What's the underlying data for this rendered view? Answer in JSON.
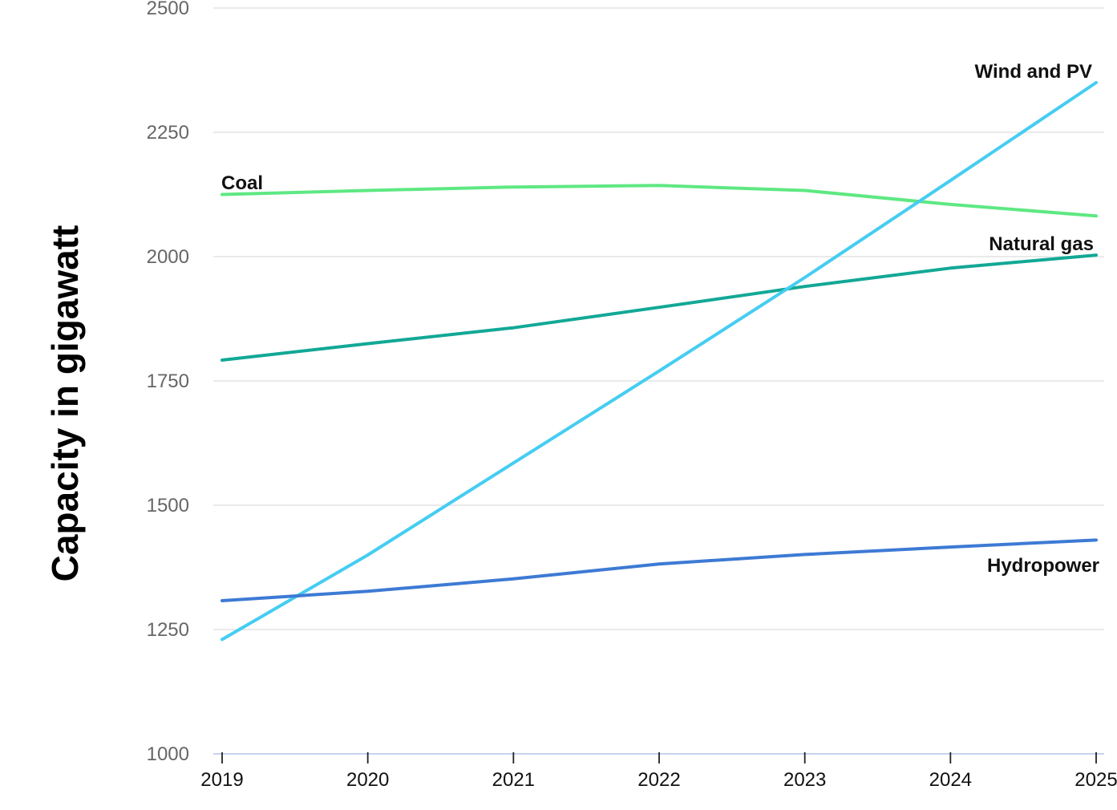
{
  "chart_data": {
    "type": "line",
    "title": "",
    "xlabel": "",
    "ylabel": "Capacity in gigawatt",
    "categories": [
      "2019",
      "2020",
      "2021",
      "2022",
      "2023",
      "2024",
      "2025"
    ],
    "ylim": [
      1000,
      2500
    ],
    "yticks": [
      "1000",
      "1250",
      "1500",
      "1750",
      "2000",
      "2250",
      "2500"
    ],
    "grid": true,
    "legend": "direct labels",
    "series": [
      {
        "name": "Coal",
        "color": "#5ee882",
        "values": [
          2125,
          2133,
          2140,
          2143,
          2133,
          2105,
          2082
        ]
      },
      {
        "name": "Natural gas",
        "color": "#12a896",
        "values": [
          1792,
          1825,
          1857,
          1898,
          1940,
          1977,
          2003
        ]
      },
      {
        "name": "Wind and PV",
        "color": "#45cdf2",
        "values": [
          1230,
          1400,
          1585,
          1770,
          1958,
          2153,
          2350
        ]
      },
      {
        "name": "Hydropower",
        "color": "#3d7ad4",
        "values": [
          1308,
          1327,
          1352,
          1382,
          1401,
          1416,
          1430
        ]
      }
    ]
  }
}
